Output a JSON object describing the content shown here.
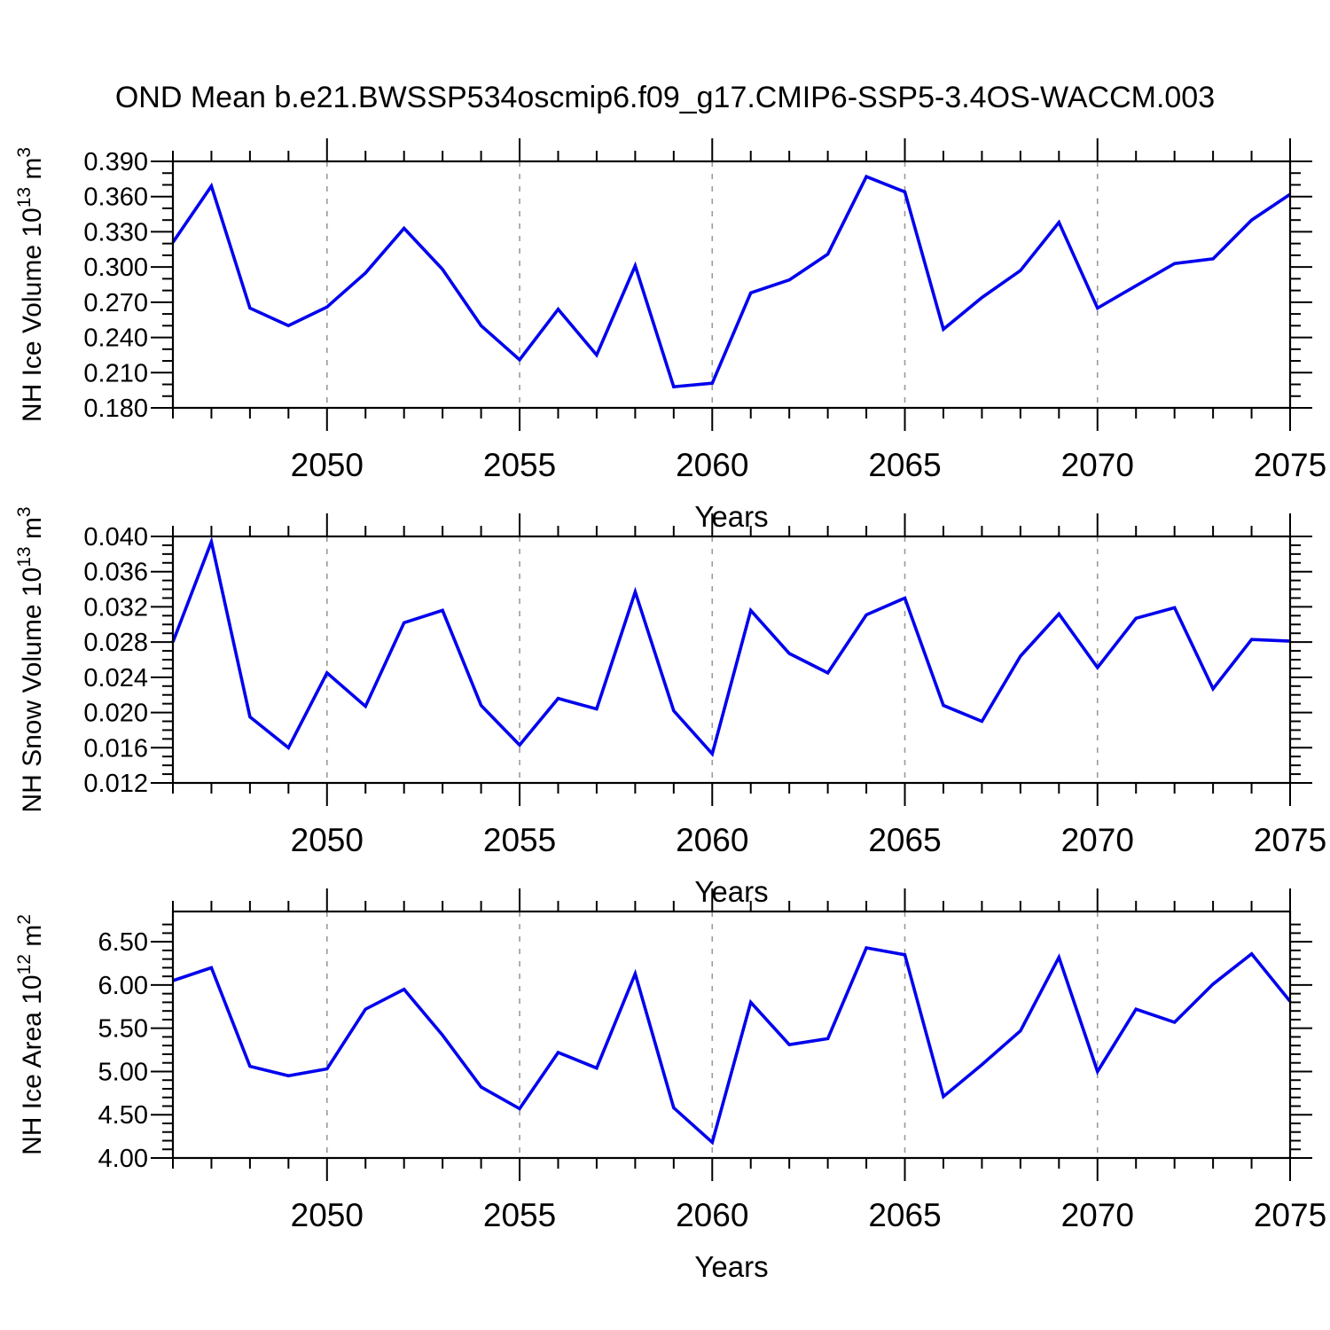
{
  "title": "OND Mean b.e21.BWSSP534oscmip6.f09_g17.CMIP6-SSP5-3.4OS-WACCM.003",
  "colors": {
    "line": "#0000EE",
    "frame": "#000000",
    "tick": "#000000",
    "grid": "#9A9A9A",
    "background": "#FFFFFF",
    "text": "#000000"
  },
  "x_axis": {
    "label": "Years",
    "min": 2046,
    "max": 2075,
    "major_ticks": [
      2050,
      2055,
      2060,
      2065,
      2070,
      2075
    ],
    "minor_step": 1,
    "gridline_years": [
      2050,
      2055,
      2060,
      2065,
      2070
    ]
  },
  "chart_data": [
    {
      "type": "line",
      "title": "NH Ice Volume",
      "ylabel": "NH Ice Volume 10^13 m^3",
      "ylabel_segments": [
        {
          "t": "NH Ice Volume 10"
        },
        {
          "t": "13",
          "sup": true
        },
        {
          "t": " m"
        },
        {
          "t": "3",
          "sup": true
        }
      ],
      "xlabel": "Years",
      "ylim": [
        0.18,
        0.39
      ],
      "yticks": {
        "min": 0.18,
        "max": 0.39,
        "step": 0.03,
        "minor_step": 0.01,
        "decimals": 3
      },
      "x": [
        2046,
        2047,
        2048,
        2049,
        2050,
        2051,
        2052,
        2053,
        2054,
        2055,
        2056,
        2057,
        2058,
        2059,
        2060,
        2061,
        2062,
        2063,
        2064,
        2065,
        2066,
        2067,
        2068,
        2069,
        2070,
        2071,
        2072,
        2073,
        2074,
        2075
      ],
      "values": [
        0.321,
        0.369,
        0.265,
        0.25,
        0.266,
        0.295,
        0.333,
        0.298,
        0.25,
        0.221,
        0.264,
        0.225,
        0.301,
        0.198,
        0.201,
        0.278,
        0.289,
        0.311,
        0.377,
        0.364,
        0.247,
        0.274,
        0.297,
        0.338,
        0.265,
        0.284,
        0.303,
        0.307,
        0.34,
        0.362
      ]
    },
    {
      "type": "line",
      "title": "NH Snow Volume",
      "ylabel": "NH Snow Volume 10^13 m^3",
      "ylabel_segments": [
        {
          "t": "NH Snow Volume 10"
        },
        {
          "t": "13",
          "sup": true
        },
        {
          "t": " m"
        },
        {
          "t": "3",
          "sup": true
        }
      ],
      "xlabel": "Years",
      "ylim": [
        0.012,
        0.04
      ],
      "yticks": {
        "min": 0.012,
        "max": 0.04,
        "step": 0.004,
        "minor_step": 0.001,
        "decimals": 3
      },
      "x": [
        2046,
        2047,
        2048,
        2049,
        2050,
        2051,
        2052,
        2053,
        2054,
        2055,
        2056,
        2057,
        2058,
        2059,
        2060,
        2061,
        2062,
        2063,
        2064,
        2065,
        2066,
        2067,
        2068,
        2069,
        2070,
        2071,
        2072,
        2073,
        2074,
        2075
      ],
      "values": [
        0.028,
        0.0394,
        0.0195,
        0.016,
        0.0245,
        0.0207,
        0.0302,
        0.0316,
        0.0208,
        0.0163,
        0.0216,
        0.0204,
        0.0337,
        0.0202,
        0.0153,
        0.0316,
        0.0267,
        0.0245,
        0.0311,
        0.033,
        0.0208,
        0.019,
        0.0264,
        0.0312,
        0.0251,
        0.0307,
        0.0319,
        0.0227,
        0.0283,
        0.0281
      ]
    },
    {
      "type": "line",
      "title": "NH Ice Area",
      "ylabel": "NH Ice Area 10^12 m^2",
      "ylabel_segments": [
        {
          "t": "NH Ice Area 10"
        },
        {
          "t": "12",
          "sup": true
        },
        {
          "t": " m"
        },
        {
          "t": "2",
          "sup": true
        }
      ],
      "xlabel": "Years",
      "ylim": [
        4.0,
        6.85
      ],
      "yticks": {
        "min": 4.0,
        "max": 6.5,
        "step": 0.5,
        "minor_step": 0.1,
        "decimals": 2
      },
      "x": [
        2046,
        2047,
        2048,
        2049,
        2050,
        2051,
        2052,
        2053,
        2054,
        2055,
        2056,
        2057,
        2058,
        2059,
        2060,
        2061,
        2062,
        2063,
        2064,
        2065,
        2066,
        2067,
        2068,
        2069,
        2070,
        2071,
        2072,
        2073,
        2074,
        2075
      ],
      "values": [
        6.05,
        6.2,
        5.06,
        4.95,
        5.03,
        5.72,
        5.95,
        5.42,
        4.82,
        4.57,
        5.22,
        5.04,
        6.13,
        4.58,
        4.18,
        5.8,
        5.31,
        5.38,
        6.43,
        6.35,
        4.71,
        5.08,
        5.47,
        6.32,
        5.0,
        5.72,
        5.57,
        6.01,
        6.36,
        5.81
      ]
    }
  ]
}
